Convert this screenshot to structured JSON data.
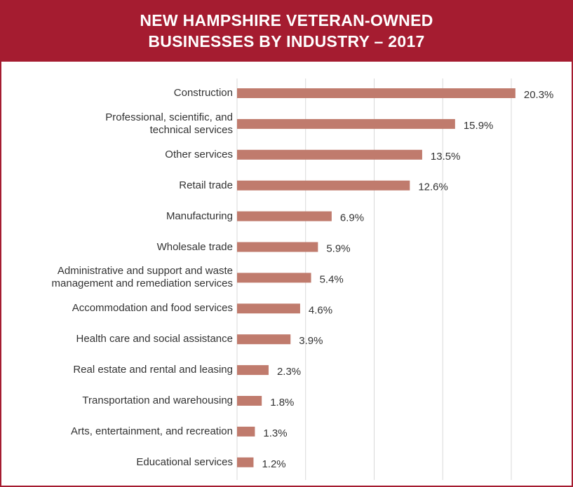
{
  "chart_data": {
    "type": "bar",
    "orientation": "horizontal",
    "title": "NEW HAMPSHIRE VETERAN-OWNED\nBUSINESSES BY INDUSTRY – 2017",
    "categories": [
      "Construction",
      "Professional, scientific, and\ntechnical services",
      "Other services",
      "Retail trade",
      "Manufacturing",
      "Wholesale trade",
      "Administrative and support and waste\nmanagement and remediation services",
      "Accommodation and food services",
      "Health care and social assistance",
      "Real estate and rental and leasing",
      "Transportation and warehousing",
      "Arts, entertainment, and recreation",
      "Educational services"
    ],
    "values": [
      20.3,
      15.9,
      13.5,
      12.6,
      6.9,
      5.9,
      5.4,
      4.6,
      3.9,
      2.3,
      1.8,
      1.3,
      1.2
    ],
    "value_labels": [
      "20.3%",
      "15.9%",
      "13.5%",
      "12.6%",
      "6.9%",
      "5.9%",
      "5.4%",
      "4.6%",
      "3.9%",
      "2.3%",
      "1.8%",
      "1.3%",
      "1.2%"
    ],
    "color": "#c07b6d",
    "xlim": [
      0,
      22
    ],
    "xticks": [
      0,
      5,
      10,
      15,
      20
    ],
    "grid": true
  }
}
